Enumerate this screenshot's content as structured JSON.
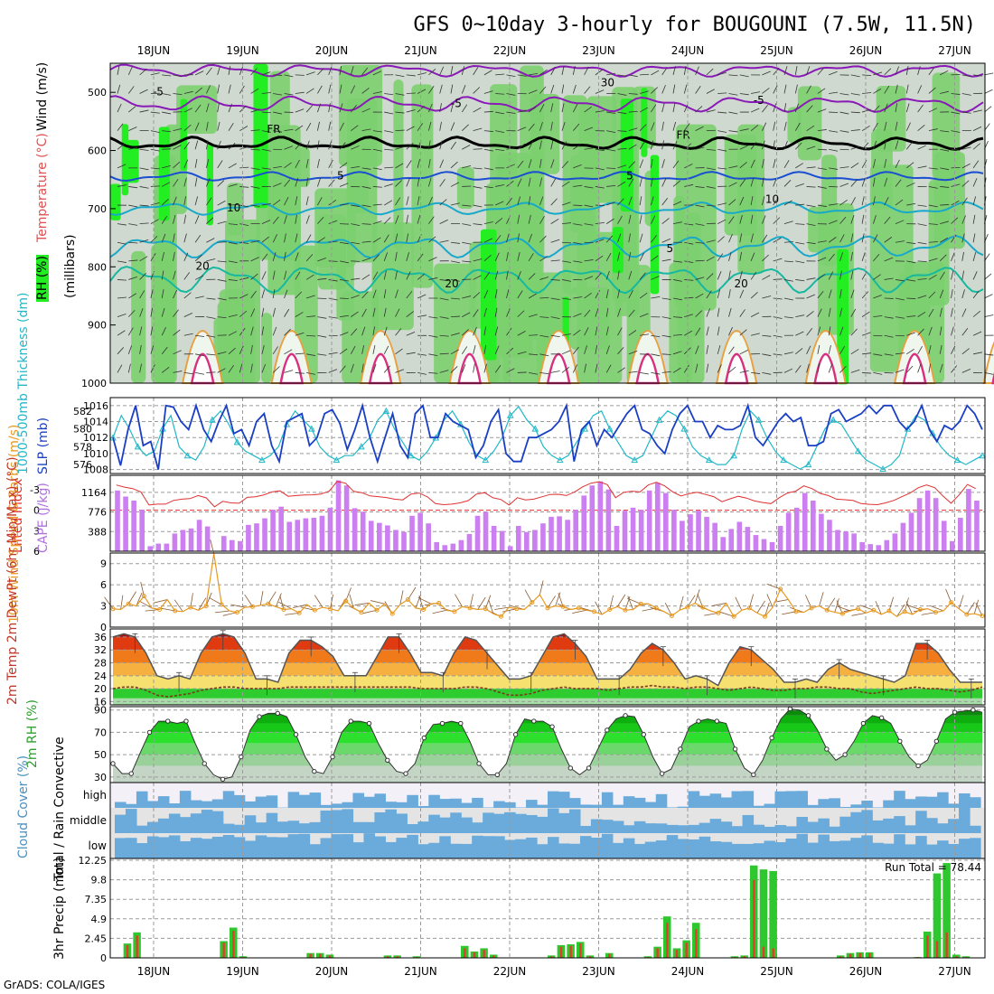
{
  "title": "GFS 0~10day 3-hourly for BOUGOUNI (7.5W, 11.5N)",
  "footer": "GrADS: COLA/IGES",
  "date_labels": [
    "18JUN",
    "19JUN",
    "20JUN",
    "21JUN",
    "22JUN",
    "23JUN",
    "24JUN",
    "25JUN",
    "26JUN",
    "27JUN"
  ],
  "colors": {
    "rh_green": "#7ccf6e",
    "rh_bright": "#22ee22",
    "rh_gray": "#cfd9cf",
    "temp_purple": "#8a1ab8",
    "temp_blue": "#1a4fd1",
    "temp_cyan": "#18a9c9",
    "temp_teal": "#15b9a0",
    "freezing": "#000000",
    "cape_bar": "#cc7ff0",
    "li_line": "#e03030",
    "slp_line": "#1a3fc4",
    "thick_line": "#22b8c8",
    "wind_line": "#e89a20",
    "cloud_blue": "#6aabdb",
    "precip_total": "#2ec82e",
    "precip_conv": "#e83a2a"
  },
  "chart_data": [
    {
      "type": "heatmap",
      "name": "upper-air",
      "ylabel_rh": "RH (%)",
      "ylabel_temp": "Temperature (°C)",
      "ylabel_wind": "Wind (m/s)",
      "ylabel_units": "(millibars)",
      "y_ticks": [
        500,
        600,
        700,
        800,
        900,
        1000
      ],
      "ylim": [
        1000,
        450
      ],
      "contour_labels": [
        {
          "day": 0.05,
          "p": 505,
          "text": "-5",
          "color": "#8a1ab8"
        },
        {
          "day": 3.4,
          "p": 525,
          "text": "-5",
          "color": "#8a1ab8"
        },
        {
          "day": 6.8,
          "p": 520,
          "text": "-5",
          "color": "#8a1ab8"
        },
        {
          "day": 5.1,
          "p": 490,
          "text": "30",
          "color": "#d0d0d0"
        },
        {
          "day": 1.35,
          "p": 570,
          "text": "FR",
          "color": "#000000"
        },
        {
          "day": 5.95,
          "p": 580,
          "text": "FR",
          "color": "#000000"
        },
        {
          "day": 2.1,
          "p": 650,
          "text": "5",
          "color": "#1a4fd1"
        },
        {
          "day": 5.35,
          "p": 650,
          "text": "5",
          "color": "#1a4fd1"
        },
        {
          "day": 0.9,
          "p": 705,
          "text": "10",
          "color": "#18a9c9"
        },
        {
          "day": 6.95,
          "p": 690,
          "text": "10",
          "color": "#18a9c9"
        },
        {
          "day": 5.8,
          "p": 775,
          "text": "5",
          "color": "#18a9c9"
        },
        {
          "day": 0.55,
          "p": 805,
          "text": "20",
          "color": "#15b9a0"
        },
        {
          "day": 3.35,
          "p": 835,
          "text": "20",
          "color": "#15b9a0"
        },
        {
          "day": 6.6,
          "p": 835,
          "text": "20",
          "color": "#15b9a0"
        }
      ]
    },
    {
      "type": "line",
      "name": "slp-thickness",
      "ylabel_left": "1000-500mb Thickness (dm)",
      "ylabel_right": "SLP (mb)",
      "left_ticks": [
        "576",
        "578",
        "580",
        "582"
      ],
      "right_ticks": [
        "1008",
        "1010",
        "1012",
        "1014",
        "1016"
      ],
      "series": [
        {
          "key": "slp",
          "values": [
            1012,
            1008.5,
            1013,
            1016,
            1011,
            1011.5,
            1008,
            1016,
            1015.8,
            1014,
            1013,
            1016,
            1013,
            1011.5,
            1014,
            1016,
            1012.5,
            1013,
            1011,
            1014,
            1015,
            1011,
            1009,
            1014,
            1014.5,
            1015,
            1011,
            1012,
            1015,
            1015.5,
            1013.8,
            1010.5,
            1013,
            1016,
            1012,
            1009,
            1012,
            1015,
            1011,
            1009.5,
            1015,
            1016,
            1012,
            1012,
            1015,
            1014,
            1013.5,
            1013,
            1009.5,
            1011,
            1014,
            1015.5,
            1010,
            1009,
            1009,
            1012,
            1012,
            1012.5,
            1013,
            1014,
            1016,
            1009,
            1013,
            1014,
            1011,
            1013,
            1012,
            1013.5,
            1015,
            1016,
            1013,
            1012.5,
            1011,
            1010,
            1013,
            1015,
            1016,
            1014,
            1014,
            1012,
            1013.5,
            1013,
            1013,
            1013.5,
            1016,
            1012,
            1011,
            1012.5,
            1014,
            1015,
            1014,
            1014.5,
            1011,
            1011,
            1011.5,
            1015,
            1015.5,
            1014,
            1014.5,
            1015,
            1016,
            1015,
            1016,
            1016,
            1014,
            1013,
            1014,
            1016,
            1013,
            1011.5,
            1013.5,
            1013,
            1014,
            1016,
            1015,
            1013
          ]
        },
        {
          "key": "thickness",
          "values": [
            579,
            581.5,
            580,
            578,
            577,
            577.5,
            580,
            581.5,
            578,
            577,
            576.5,
            578,
            581,
            582,
            580.5,
            578.5,
            577.5,
            577,
            576.5,
            577,
            578,
            580.5,
            582,
            581,
            580,
            578,
            577,
            576.5,
            577,
            577,
            578,
            579,
            581,
            582,
            580,
            578.5,
            577,
            576.5,
            577.5,
            579,
            581,
            582,
            580.5,
            578.5,
            577,
            576.5,
            577.5,
            579,
            581.5,
            582.5,
            581,
            580,
            578,
            577,
            576.5,
            577,
            578.5,
            580,
            581.5,
            582,
            580,
            578.5,
            577,
            576.5,
            577,
            579,
            581,
            582,
            581.5,
            580,
            578,
            577,
            576.5,
            576,
            576,
            577,
            580,
            582,
            581,
            579,
            577.5,
            576.5,
            576,
            575.5,
            576,
            578,
            580,
            581,
            580.5,
            579,
            577.5,
            576.5,
            576,
            575.5,
            576,
            577,
            580,
            581.5,
            581,
            579.5,
            578,
            577,
            576.5,
            576,
            576.5,
            577
          ]
        }
      ]
    },
    {
      "type": "bar",
      "name": "cape-li",
      "ylabel_left": "Lifted Index",
      "ylabel_right": "CAPE (J/kg)",
      "li_ticks": [
        "-3",
        "0",
        "3",
        "6"
      ],
      "cape_ticks": [
        "388",
        "776",
        "1164"
      ],
      "cape_values": [
        1200,
        1080,
        1000,
        820,
        100,
        150,
        150,
        350,
        420,
        450,
        620,
        490,
        0,
        300,
        220,
        200,
        520,
        550,
        650,
        820,
        880,
        580,
        620,
        650,
        660,
        700,
        860,
        1400,
        1300,
        850,
        780,
        600,
        560,
        510,
        420,
        380,
        700,
        760,
        550,
        180,
        120,
        150,
        220,
        340,
        700,
        780,
        500,
        400,
        100,
        500,
        380,
        420,
        550,
        680,
        690,
        620,
        820,
        1100,
        1300,
        1380,
        1220,
        500,
        800,
        860,
        820,
        1200,
        1350,
        1150,
        820,
        600,
        730,
        800,
        680,
        560,
        280,
        440,
        580,
        480,
        320,
        240,
        180,
        500,
        760,
        860,
        1150,
        1000,
        740,
        620,
        420,
        390,
        350,
        180,
        140,
        120,
        220,
        350,
        560,
        760,
        1050,
        1200,
        1050,
        600,
        200,
        660,
        1230,
        1000
      ]
    },
    {
      "type": "line",
      "name": "wind10m",
      "ylabel": "10m Wind Speed & Barbs (m/s)",
      "y_ticks": [
        "0",
        "3",
        "6",
        "9"
      ],
      "ylim": [
        0,
        10
      ],
      "values": [
        2.6,
        2.5,
        3.3,
        3.0,
        4.4,
        2.7,
        2.5,
        3.9,
        2.3,
        2.2,
        2.8,
        2.4,
        3.0,
        10.4,
        3.2,
        2.3,
        2.1,
        2.8,
        2.9,
        3.1,
        3.3,
        2.9,
        2.5,
        2.6,
        2.0,
        3.2,
        2.4,
        2.8,
        2.6,
        2.3,
        3.7,
        2.7,
        2.1,
        3.4,
        2.4,
        3.3,
        1.9,
        3.2,
        3.9,
        2.7,
        2.5,
        3.3,
        3.4,
        2.4,
        2.2,
        2.9,
        2.7,
        2.5,
        2.6,
        1.9,
        1.5,
        2.8,
        2.6,
        2.5,
        3.5,
        4.6,
        2.7,
        3.0,
        2.9,
        2.5,
        2.7,
        2.4,
        2.2,
        1.8,
        2.5,
        2.9,
        2.4,
        2.5,
        3.3,
        3.3,
        2.7,
        2.2,
        1.6,
        2.4,
        2.8,
        3.4,
        2.8,
        2.3,
        2.0,
        3.4,
        1.5,
        2.4,
        2.7,
        2.0,
        1.5,
        2.8,
        5.4,
        3.9,
        2.2,
        2.1,
        2.7,
        3.0,
        2.4,
        2.1,
        1.9,
        2.3,
        2.6,
        2.0,
        2.4,
        1.8,
        2.3,
        1.5,
        2.2,
        1.8,
        2.5,
        2.6,
        2.1,
        2.3,
        3.5,
        2.6,
        1.8,
        1.9,
        1.6
      ]
    },
    {
      "type": "area",
      "name": "temp2m",
      "ylabel": "2m Temp 2m DewPt (6hr Min/Max) (°C)",
      "y_ticks": [
        "16",
        "20",
        "24",
        "28",
        "32",
        "36"
      ],
      "ylim": [
        15,
        38
      ],
      "temp_values": [
        36,
        37,
        36,
        31,
        24,
        23,
        24,
        23,
        31,
        36,
        37,
        36,
        31,
        23,
        23,
        22,
        31,
        35,
        35,
        33,
        30,
        24,
        24,
        24,
        30,
        36,
        36,
        31,
        25,
        25,
        24,
        31,
        36,
        35,
        31,
        27,
        23,
        23,
        24,
        30,
        36,
        37,
        34,
        30,
        23,
        23,
        23,
        26,
        31,
        34,
        32,
        28,
        23,
        24,
        23,
        21,
        28,
        33,
        32,
        29,
        26,
        22,
        22,
        23,
        22,
        26,
        28,
        26,
        25,
        24,
        23,
        22,
        24,
        34,
        34,
        31,
        26,
        22,
        22,
        22
      ],
      "dew_values": [
        20,
        20.5,
        20.5,
        19.5,
        18,
        17.5,
        18,
        18.5,
        19.5,
        20,
        20.5,
        20.5,
        20,
        20,
        20,
        20,
        20.5,
        20.5,
        20.5,
        20.5,
        20.5,
        20.5,
        20.5,
        20.5,
        20.5,
        20.5,
        20.5,
        20.5,
        20,
        20,
        20,
        20,
        20.5,
        20.5,
        20,
        19,
        18,
        18,
        18.5,
        19.5,
        20,
        20.5,
        20,
        20,
        20,
        19.5,
        20,
        20.5,
        20.5,
        21,
        20.5,
        20.5,
        20,
        20.5,
        20.5,
        20,
        19.5,
        20,
        20.5,
        20,
        19.5,
        19.5,
        20,
        20,
        20.5,
        20.5,
        20,
        20,
        19,
        18.5,
        19,
        19.5,
        20,
        20.5,
        20,
        20,
        19.5,
        19,
        19.5,
        20.5
      ]
    },
    {
      "type": "area",
      "name": "rh2m",
      "ylabel": "2m RH (%)",
      "y_ticks": [
        "30",
        "50",
        "70",
        "90"
      ],
      "ylim": [
        25,
        93
      ],
      "values": [
        42,
        33,
        33,
        52,
        70,
        80,
        80,
        78,
        80,
        60,
        42,
        32,
        28,
        30,
        48,
        72,
        84,
        87,
        87,
        84,
        68,
        48,
        35,
        33,
        48,
        70,
        80,
        80,
        78,
        60,
        45,
        35,
        33,
        42,
        65,
        77,
        78,
        80,
        78,
        62,
        42,
        32,
        32,
        42,
        68,
        82,
        80,
        80,
        75,
        55,
        38,
        32,
        38,
        55,
        72,
        82,
        85,
        84,
        68,
        48,
        33,
        37,
        55,
        75,
        80,
        82,
        80,
        78,
        55,
        38,
        32,
        45,
        65,
        82,
        91,
        90,
        85,
        72,
        55,
        45,
        50,
        62,
        78,
        85,
        83,
        78,
        62,
        48,
        40,
        45,
        62,
        82,
        88,
        89,
        90,
        88
      ]
    },
    {
      "type": "heatmap",
      "name": "cloud",
      "ylabel": "Cloud Cover (%)",
      "levels": [
        "high",
        "middle",
        "low"
      ]
    },
    {
      "type": "bar",
      "name": "precip",
      "ylabel": "Total / Rain Convective",
      "ylabel_units": "3hr Precip (mm)",
      "y_ticks": [
        "0",
        "2.45",
        "4.9",
        "7.35",
        "9.8",
        "12.25"
      ],
      "ylim": [
        0,
        12.25
      ],
      "run_total": "Run Total = 78.44",
      "bars": [
        {
          "i": 1,
          "t": 1.8,
          "c": 1.6
        },
        {
          "i": 2,
          "t": 3.2,
          "c": 2.8
        },
        {
          "i": 11,
          "t": 2.1,
          "c": 1.9
        },
        {
          "i": 12,
          "t": 3.8,
          "c": 3.4
        },
        {
          "i": 13,
          "t": 0.2,
          "c": 0.1
        },
        {
          "i": 20,
          "t": 0.6,
          "c": 0.5
        },
        {
          "i": 21,
          "t": 0.6,
          "c": 0.5
        },
        {
          "i": 22,
          "t": 0.4,
          "c": 0.3
        },
        {
          "i": 28,
          "t": 0.3,
          "c": 0.2
        },
        {
          "i": 29,
          "t": 0.3,
          "c": 0.2
        },
        {
          "i": 31,
          "t": 0.2,
          "c": 0.1
        },
        {
          "i": 36,
          "t": 1.5,
          "c": 1.2
        },
        {
          "i": 37,
          "t": 0.8,
          "c": 0.7
        },
        {
          "i": 38,
          "t": 1.2,
          "c": 1.0
        },
        {
          "i": 39,
          "t": 0.4,
          "c": 0.3
        },
        {
          "i": 45,
          "t": 0.3,
          "c": 0.2
        },
        {
          "i": 46,
          "t": 1.6,
          "c": 1.4
        },
        {
          "i": 47,
          "t": 1.7,
          "c": 1.5
        },
        {
          "i": 48,
          "t": 2.0,
          "c": 1.8
        },
        {
          "i": 49,
          "t": 0.3,
          "c": 0.2
        },
        {
          "i": 51,
          "t": 0.6,
          "c": 0.5
        },
        {
          "i": 55,
          "t": 0.2,
          "c": 0.1
        },
        {
          "i": 56,
          "t": 1.4,
          "c": 1.2
        },
        {
          "i": 57,
          "t": 5.2,
          "c": 4.4
        },
        {
          "i": 58,
          "t": 1.2,
          "c": 1.0
        },
        {
          "i": 59,
          "t": 2.2,
          "c": 1.9
        },
        {
          "i": 60,
          "t": 4.4,
          "c": 3.6
        },
        {
          "i": 64,
          "t": 0.2,
          "c": 0.1
        },
        {
          "i": 65,
          "t": 0.3,
          "c": 0.2
        },
        {
          "i": 66,
          "t": 11.6,
          "c": 9.8
        },
        {
          "i": 67,
          "t": 11.1,
          "c": 1.4
        },
        {
          "i": 68,
          "t": 10.9,
          "c": 1.2
        },
        {
          "i": 75,
          "t": 0.3,
          "c": 0.2
        },
        {
          "i": 76,
          "t": 0.6,
          "c": 0.5
        },
        {
          "i": 77,
          "t": 0.7,
          "c": 0.6
        },
        {
          "i": 78,
          "t": 0.7,
          "c": 0.6
        },
        {
          "i": 83,
          "t": 0.1,
          "c": 0.1
        },
        {
          "i": 84,
          "t": 3.3,
          "c": 2.8
        },
        {
          "i": 85,
          "t": 10.6,
          "c": 2.1
        },
        {
          "i": 86,
          "t": 11.9,
          "c": 3.2
        },
        {
          "i": 87,
          "t": 0.4,
          "c": 0.2
        },
        {
          "i": 88,
          "t": 0.2,
          "c": 0.1
        }
      ]
    }
  ]
}
